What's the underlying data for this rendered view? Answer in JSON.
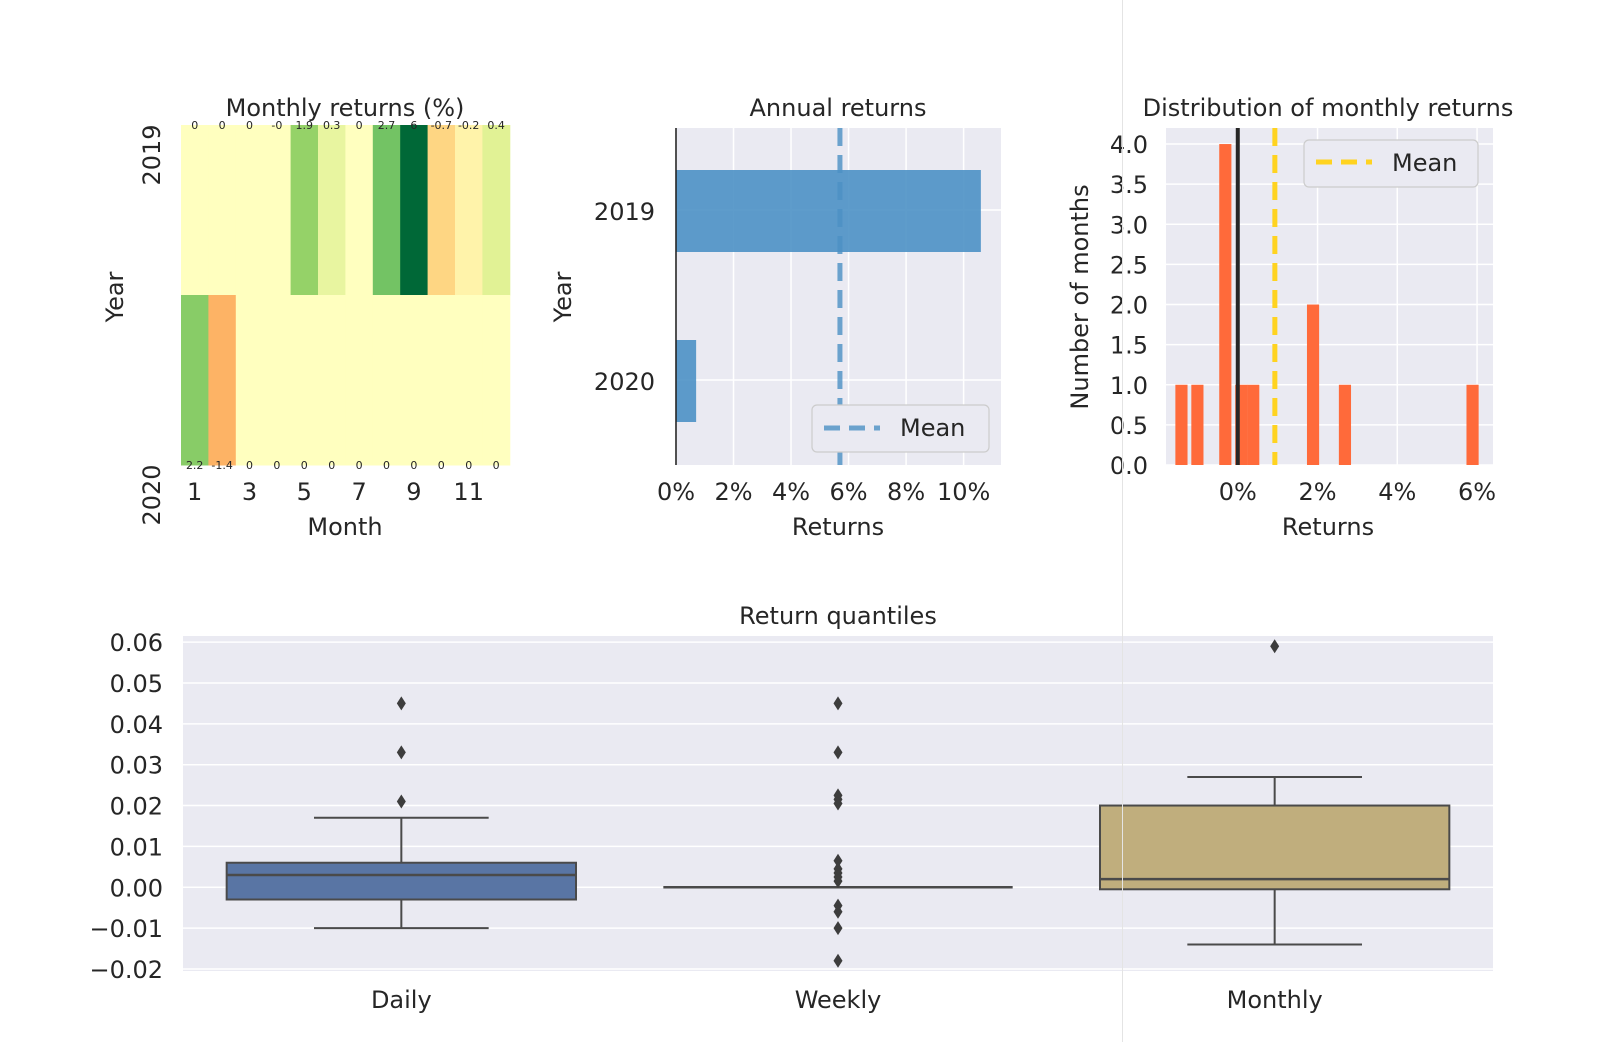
{
  "chart_data": [
    {
      "type": "heatmap",
      "title": "Monthly returns (%)",
      "xlabel": "Month",
      "ylabel": "Year",
      "x_tick_labels": [
        "1",
        "3",
        "5",
        "7",
        "9",
        "11"
      ],
      "rows": [
        "2019",
        "2020"
      ],
      "columns": [
        1,
        2,
        3,
        4,
        5,
        6,
        7,
        8,
        9,
        10,
        11,
        12
      ],
      "values": [
        [
          0,
          0,
          0,
          -0.0,
          1.9,
          0.3,
          0,
          2.7,
          6,
          -0.7,
          -0.2,
          0.4
        ],
        [
          2.2,
          -1.4,
          0,
          0,
          0,
          0,
          0,
          0,
          0,
          0,
          0,
          0
        ]
      ],
      "cell_labels": [
        [
          "0",
          "0",
          "0",
          "-0",
          "1.9",
          "0.3",
          "0",
          "2.7",
          "6",
          "-0.7",
          "-0.2",
          "0.4"
        ],
        [
          "2.2",
          "-1.4",
          "0",
          "0",
          "0",
          "0",
          "0",
          "0",
          "0",
          "0",
          "0",
          "0"
        ]
      ],
      "colormap": "RdYlGn"
    },
    {
      "type": "bar",
      "orientation": "horizontal",
      "title": "Annual returns",
      "xlabel": "Returns",
      "ylabel": "Year",
      "categories": [
        "2019",
        "2020"
      ],
      "values": [
        10.6,
        0.7
      ],
      "mean": 5.7,
      "legend": [
        "Mean"
      ],
      "legend_position": "lower-right",
      "x_tick_labels": [
        "0%",
        "2%",
        "4%",
        "6%",
        "8%",
        "10%"
      ],
      "xlim": [
        0,
        11.3
      ],
      "bar_color": "#4c91c5",
      "mean_color": "#4c91c5",
      "grid": true
    },
    {
      "type": "bar",
      "subtype": "histogram",
      "title": "Distribution of monthly returns",
      "xlabel": "Returns",
      "ylabel": "Number of months",
      "bins": [
        {
          "x": -1.4,
          "count": 1
        },
        {
          "x": -1.0,
          "count": 1
        },
        {
          "x": -0.3,
          "count": 4
        },
        {
          "x": 0.1,
          "count": 1
        },
        {
          "x": 0.4,
          "count": 1
        },
        {
          "x": 1.9,
          "count": 2
        },
        {
          "x": 2.7,
          "count": 1
        },
        {
          "x": 5.9,
          "count": 1
        }
      ],
      "bin_width": 0.33,
      "zero_line": 0,
      "mean": 0.93,
      "legend": [
        "Mean"
      ],
      "legend_position": "top-right",
      "x_tick_labels": [
        "0%",
        "2%",
        "4%",
        "6%"
      ],
      "y_tick_labels": [
        "0.0",
        "0.5",
        "1.0",
        "1.5",
        "2.0",
        "2.5",
        "3.0",
        "3.5",
        "4.0"
      ],
      "xlim": [
        -1.8,
        6.4
      ],
      "ylim": [
        0,
        4.2
      ],
      "bar_color": "#ff6a3a",
      "mean_color": "#ffd320",
      "grid": true
    },
    {
      "type": "box",
      "title": "Return quantiles",
      "categories": [
        "Daily",
        "Weekly",
        "Monthly"
      ],
      "y_tick_labels": [
        "0.06",
        "0.05",
        "0.04",
        "0.03",
        "0.02",
        "0.01",
        "0.00",
        "−0.01",
        "−0.02"
      ],
      "ylim": [
        -0.0205,
        0.0615
      ],
      "series": [
        {
          "q1": -0.003,
          "median": 0.003,
          "q3": 0.006,
          "whisker_low": -0.01,
          "whisker_high": 0.017,
          "outliers": [
            0.045,
            0.033,
            0.021
          ],
          "color": "#5975a4"
        },
        {
          "q1": 0.0,
          "median": 0.0,
          "q3": 0.0,
          "whisker_low": 0.0,
          "whisker_high": 0.0,
          "outliers": [
            0.045,
            0.033,
            0.0225,
            0.0215,
            0.0205,
            0.0065,
            0.0045,
            0.0035,
            0.0025,
            0.0015,
            -0.0045,
            -0.006,
            -0.01,
            -0.018
          ],
          "color": "#5975a4"
        },
        {
          "q1": -0.0005,
          "median": 0.002,
          "q3": 0.02,
          "whisker_low": -0.014,
          "whisker_high": 0.027,
          "outliers": [
            0.059
          ],
          "color": "#c0ae7d"
        }
      ],
      "grid": true
    }
  ]
}
